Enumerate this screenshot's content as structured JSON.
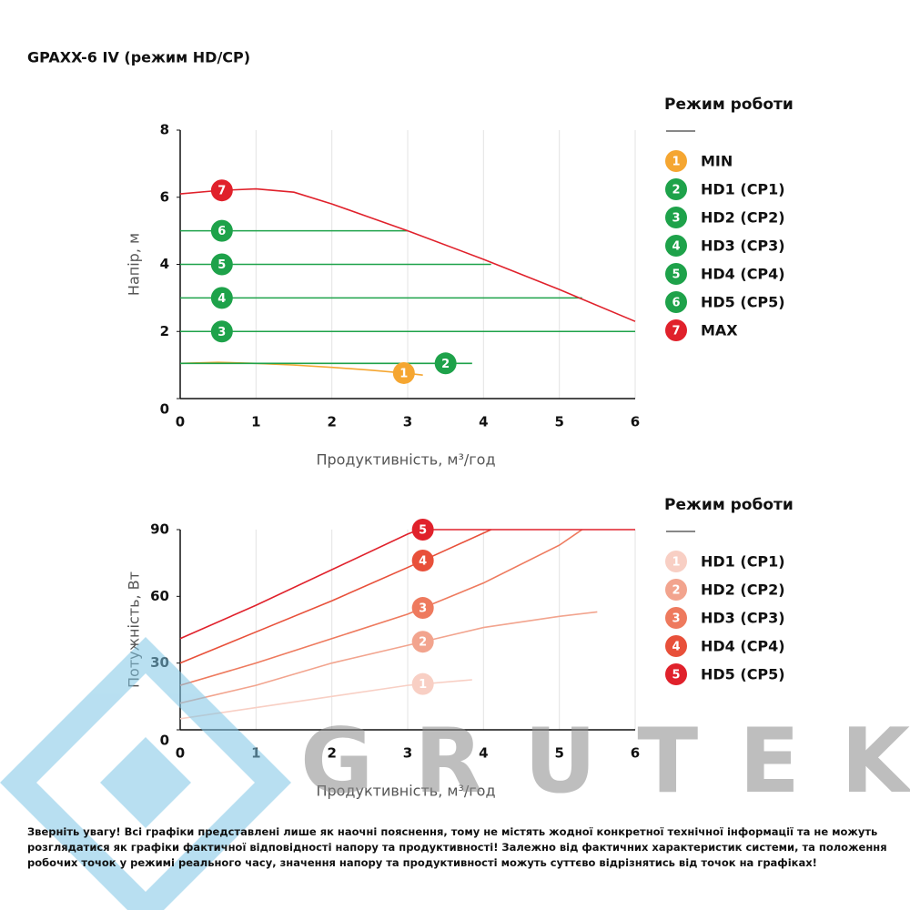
{
  "chart_data": [
    {
      "type": "line",
      "title": "GPAXX-6 IV (режим HD/CP)",
      "x_label": "Продуктивність, м³/год",
      "y_label": "Напір, м",
      "legend_title": "Режим роботи",
      "xlim": [
        0,
        6
      ],
      "ylim": [
        0,
        8
      ],
      "xticks": [
        0,
        1,
        2,
        3,
        4,
        5,
        6
      ],
      "yticks": [
        0,
        2,
        4,
        6,
        8
      ],
      "grid": "x",
      "series": [
        {
          "name": "MIN",
          "badge": "1",
          "color": "#f5a631",
          "x": [
            0,
            0.5,
            1,
            1.5,
            2,
            2.5,
            3,
            3.2
          ],
          "values": [
            1.05,
            1.08,
            1.05,
            1.0,
            0.93,
            0.85,
            0.75,
            0.7
          ]
        },
        {
          "name": "HD1 (CP1)",
          "badge": "2",
          "color": "#1ea24a",
          "x": [
            0,
            3.85
          ],
          "values": [
            1.05,
            1.05
          ]
        },
        {
          "name": "HD2 (CP2)",
          "badge": "3",
          "color": "#1ea24a",
          "x": [
            0,
            6
          ],
          "values": [
            2,
            2
          ]
        },
        {
          "name": "HD3 (CP3)",
          "badge": "4",
          "color": "#1ea24a",
          "x": [
            0,
            5.3
          ],
          "values": [
            3,
            3
          ]
        },
        {
          "name": "HD4 (CP4)",
          "badge": "5",
          "color": "#1ea24a",
          "x": [
            0,
            4.1
          ],
          "values": [
            4,
            4
          ]
        },
        {
          "name": "HD5 (CP5)",
          "badge": "6",
          "color": "#1ea24a",
          "x": [
            0,
            3
          ],
          "values": [
            5,
            5
          ]
        },
        {
          "name": "MAX",
          "badge": "7",
          "color": "#e0212b",
          "x": [
            0,
            0.5,
            1,
            1.5,
            2,
            2.5,
            3,
            4,
            5,
            6
          ],
          "values": [
            6.1,
            6.2,
            6.25,
            6.15,
            5.8,
            5.4,
            5.0,
            4.15,
            3.25,
            2.3
          ]
        }
      ]
    },
    {
      "type": "line",
      "x_label": "Продуктивність, м³/год",
      "y_label": "Потужність, Вт",
      "legend_title": "Режим роботи",
      "xlim": [
        0,
        6
      ],
      "ylim": [
        0,
        90
      ],
      "xticks": [
        0,
        1,
        2,
        3,
        4,
        5,
        6
      ],
      "yticks": [
        0,
        30,
        60,
        90
      ],
      "grid": "x",
      "series": [
        {
          "name": "HD1 (CP1)",
          "badge": "1",
          "color": "#f8cfc4",
          "x": [
            0,
            1,
            2,
            3,
            3.85
          ],
          "values": [
            5,
            10,
            15,
            20,
            22.5
          ]
        },
        {
          "name": "HD2 (CP2)",
          "badge": "2",
          "color": "#f2a48e",
          "x": [
            0,
            1,
            2,
            3,
            4,
            5,
            5.5
          ],
          "values": [
            12,
            20,
            30,
            38,
            46,
            51,
            53
          ]
        },
        {
          "name": "HD3 (CP3)",
          "badge": "3",
          "color": "#ee7a5e",
          "x": [
            0,
            1,
            2,
            3,
            4,
            5,
            5.3
          ],
          "values": [
            20,
            30,
            41,
            52,
            66,
            83,
            90
          ]
        },
        {
          "name": "HD4 (CP4)",
          "badge": "4",
          "color": "#e8503a",
          "x": [
            0,
            1,
            2,
            3,
            4.1
          ],
          "values": [
            30,
            44,
            58,
            73,
            90
          ]
        },
        {
          "name": "HD5 (CP5)",
          "badge": "5",
          "color": "#e0212b",
          "x": [
            0,
            1,
            2,
            3,
            3.15,
            6
          ],
          "values": [
            41,
            56,
            72,
            88,
            90,
            90
          ]
        }
      ]
    }
  ],
  "watermark": "GRUTEK",
  "note": "Зверніть увагу! Всі графіки представлені лише як наочні пояснення, тому не містять жодної конкретної технічної інформації та не можуть розглядатися як графіки фактичної відповідності напору та продуктивності! Залежно від фактичних характеристик системи, та положення робочих точок у режимі реального часу, значення напору та продуктивності можуть суттєво відрізнятись від точок на графіках!"
}
